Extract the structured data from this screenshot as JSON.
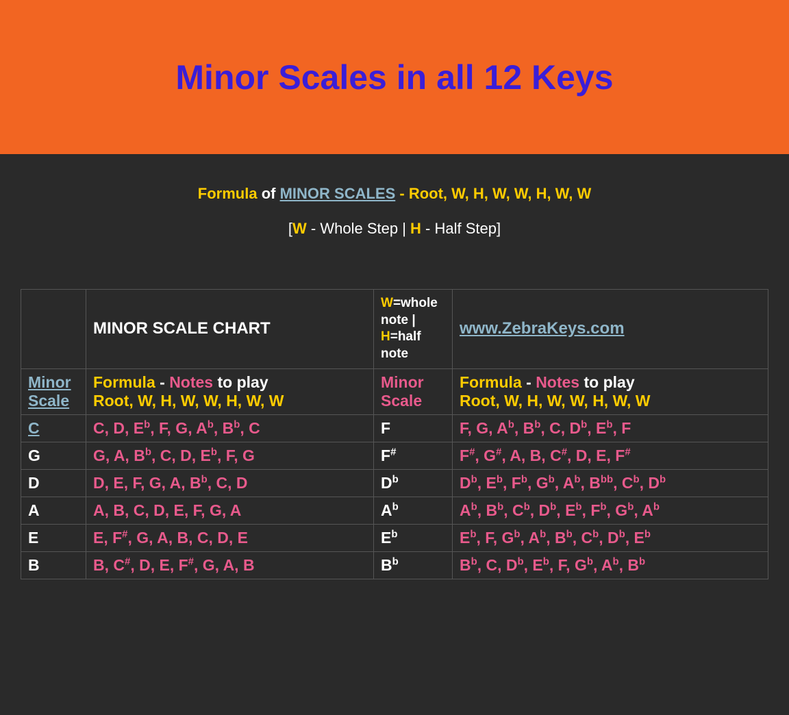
{
  "header": {
    "title": "Minor Scales in all 12 Keys",
    "bg_color": "#f26522",
    "title_color": "#3a1ed8"
  },
  "formula_line": {
    "formula_word": "Formula",
    "of_word": "of",
    "link_text": "MINOR SCALES",
    "sequence": " - Root, W, H, W, W, H, W, W"
  },
  "step_line": {
    "open": "[",
    "w": "W",
    "w_desc": " - Whole Step | ",
    "h": "H",
    "h_desc": " - Half Step]"
  },
  "table": {
    "hdr": {
      "chart_title": "MINOR SCALE CHART",
      "wh_w": "W",
      "wh_whole": "=whole note | ",
      "wh_h": "H",
      "wh_half": "=half note",
      "zk": "www.ZebraKeys.com"
    },
    "hdr2": {
      "ms_left": "Minor Scale",
      "formula_word": "Formula",
      "dash": " - ",
      "notes_word": "Notes",
      "to_play": " to play",
      "root_seq": "Root, W, H, W, W, H, W, W",
      "ms_right": "Minor Scale"
    },
    "rows": [
      {
        "key_left": "C",
        "key_left_link": true,
        "notes_left": [
          [
            "C"
          ],
          [
            ", "
          ],
          [
            "D"
          ],
          [
            ", "
          ],
          [
            "E",
            "b"
          ],
          [
            ", "
          ],
          [
            "F"
          ],
          [
            ", "
          ],
          [
            "G"
          ],
          [
            ", "
          ],
          [
            "A",
            "b"
          ],
          [
            ", "
          ],
          [
            "B",
            "b"
          ],
          [
            ", "
          ],
          [
            "C"
          ]
        ],
        "key_right": "F",
        "key_right_sup": "",
        "notes_right": [
          [
            "F"
          ],
          [
            ", "
          ],
          [
            "G"
          ],
          [
            ", "
          ],
          [
            "A",
            "b"
          ],
          [
            ", "
          ],
          [
            "B",
            "b"
          ],
          [
            ", "
          ],
          [
            "C"
          ],
          [
            ", "
          ],
          [
            "D",
            "b"
          ],
          [
            ", "
          ],
          [
            "E",
            "b"
          ],
          [
            ", "
          ],
          [
            "F"
          ]
        ]
      },
      {
        "key_left": "G",
        "notes_left": [
          [
            "G"
          ],
          [
            ", "
          ],
          [
            "A"
          ],
          [
            ", "
          ],
          [
            "B",
            "b"
          ],
          [
            ", "
          ],
          [
            "C"
          ],
          [
            ", "
          ],
          [
            "D"
          ],
          [
            ", "
          ],
          [
            "E",
            "b"
          ],
          [
            ", "
          ],
          [
            "F"
          ],
          [
            ", "
          ],
          [
            "G"
          ]
        ],
        "key_right": "F",
        "key_right_sup": "#",
        "notes_right": [
          [
            "F",
            "#"
          ],
          [
            ", "
          ],
          [
            "G",
            "#"
          ],
          [
            ", "
          ],
          [
            "A"
          ],
          [
            ", "
          ],
          [
            "B"
          ],
          [
            ", "
          ],
          [
            "C",
            "#"
          ],
          [
            ", "
          ],
          [
            "D"
          ],
          [
            ", "
          ],
          [
            "E"
          ],
          [
            ", "
          ],
          [
            "F",
            "#"
          ]
        ]
      },
      {
        "key_left": "D",
        "notes_left": [
          [
            "D"
          ],
          [
            ", "
          ],
          [
            "E"
          ],
          [
            ", "
          ],
          [
            "F"
          ],
          [
            ", "
          ],
          [
            "G"
          ],
          [
            ", "
          ],
          [
            "A"
          ],
          [
            ", "
          ],
          [
            "B",
            "b"
          ],
          [
            ", "
          ],
          [
            "C"
          ],
          [
            ", "
          ],
          [
            "D"
          ]
        ],
        "key_right": "D",
        "key_right_sup": "b",
        "notes_right": [
          [
            "D",
            "b"
          ],
          [
            ", "
          ],
          [
            "E",
            "b"
          ],
          [
            ", "
          ],
          [
            "F",
            "b"
          ],
          [
            ", "
          ],
          [
            "G",
            "b"
          ],
          [
            ", "
          ],
          [
            "A",
            "b"
          ],
          [
            ", "
          ],
          [
            "B",
            "bb"
          ],
          [
            ", "
          ],
          [
            "C",
            "b"
          ],
          [
            ", "
          ],
          [
            "D",
            "b"
          ]
        ]
      },
      {
        "key_left": "A",
        "notes_left": [
          [
            "A"
          ],
          [
            ", "
          ],
          [
            "B"
          ],
          [
            ", "
          ],
          [
            "C"
          ],
          [
            ", "
          ],
          [
            "D"
          ],
          [
            ", "
          ],
          [
            "E"
          ],
          [
            ", "
          ],
          [
            "F"
          ],
          [
            ", "
          ],
          [
            "G"
          ],
          [
            ", "
          ],
          [
            "A"
          ]
        ],
        "key_right": "A",
        "key_right_sup": "b",
        "notes_right": [
          [
            "A",
            "b"
          ],
          [
            ", "
          ],
          [
            "B",
            "b"
          ],
          [
            ", "
          ],
          [
            "C",
            "b"
          ],
          [
            ", "
          ],
          [
            "D",
            "b"
          ],
          [
            ", "
          ],
          [
            "E",
            "b"
          ],
          [
            ", "
          ],
          [
            "F",
            "b"
          ],
          [
            ", "
          ],
          [
            "G",
            "b"
          ],
          [
            ", "
          ],
          [
            "A",
            "b"
          ]
        ]
      },
      {
        "key_left": "E",
        "notes_left": [
          [
            "E"
          ],
          [
            ", "
          ],
          [
            "F",
            "#"
          ],
          [
            ", "
          ],
          [
            "G"
          ],
          [
            ", "
          ],
          [
            "A"
          ],
          [
            ", "
          ],
          [
            "B"
          ],
          [
            ", "
          ],
          [
            "C"
          ],
          [
            ", "
          ],
          [
            "D"
          ],
          [
            ", "
          ],
          [
            "E"
          ]
        ],
        "key_right": "E",
        "key_right_sup": "b",
        "notes_right": [
          [
            "E",
            "b"
          ],
          [
            ", "
          ],
          [
            "F"
          ],
          [
            ", "
          ],
          [
            "G",
            "b"
          ],
          [
            ", "
          ],
          [
            "A",
            "b"
          ],
          [
            ", "
          ],
          [
            "B",
            "b"
          ],
          [
            ", "
          ],
          [
            "C",
            "b"
          ],
          [
            ", "
          ],
          [
            "D",
            "b"
          ],
          [
            ", "
          ],
          [
            "E",
            "b"
          ]
        ]
      },
      {
        "key_left": "B",
        "notes_left": [
          [
            "B"
          ],
          [
            ", "
          ],
          [
            "C",
            "#"
          ],
          [
            ", "
          ],
          [
            "D"
          ],
          [
            ", "
          ],
          [
            "E"
          ],
          [
            ", "
          ],
          [
            "F",
            "#"
          ],
          [
            ", "
          ],
          [
            "G"
          ],
          [
            ", "
          ],
          [
            "A"
          ],
          [
            ", "
          ],
          [
            "B"
          ]
        ],
        "key_right": "B",
        "key_right_sup": "b",
        "notes_right": [
          [
            "B",
            "b"
          ],
          [
            ", "
          ],
          [
            "C"
          ],
          [
            ", "
          ],
          [
            "D",
            "b"
          ],
          [
            ", "
          ],
          [
            "E",
            "b"
          ],
          [
            ", "
          ],
          [
            "F"
          ],
          [
            ", "
          ],
          [
            "G",
            "b"
          ],
          [
            ", "
          ],
          [
            "A",
            "b"
          ],
          [
            ", "
          ],
          [
            "B",
            "b"
          ]
        ]
      }
    ]
  },
  "colors": {
    "bg": "#2a2a2a",
    "yellow": "#ffcc00",
    "pink": "#e85a8c",
    "link_blue": "#8fb6c9",
    "white": "#ffffff",
    "border": "#555555"
  }
}
